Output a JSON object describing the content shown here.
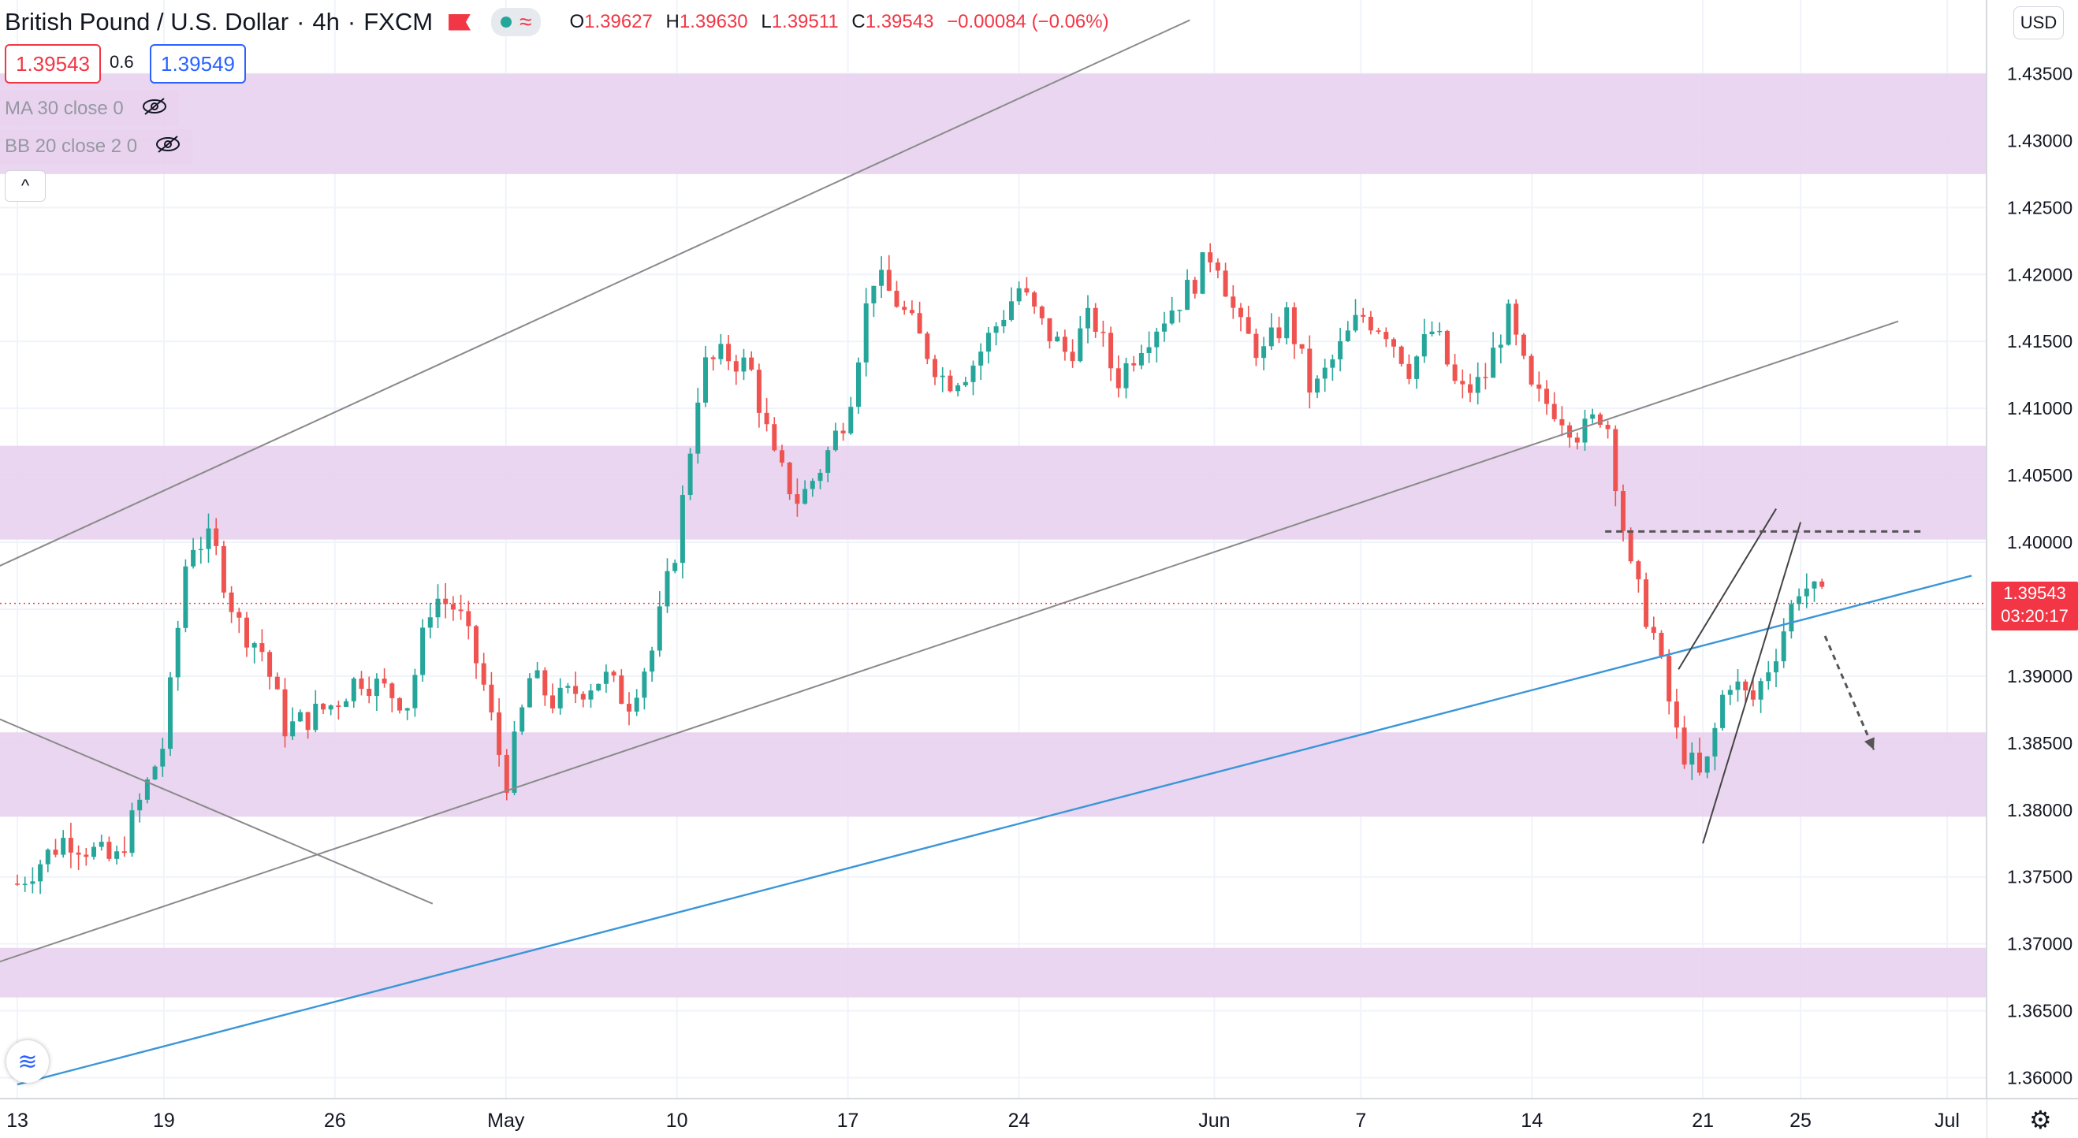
{
  "header": {
    "symbol": "British Pound / U.S. Dollar",
    "interval": "4h",
    "exchange": "FXCM",
    "open_label": "O",
    "open": "1.39627",
    "high_label": "H",
    "high": "1.39630",
    "low_label": "L",
    "low": "1.39511",
    "close_label": "C",
    "close": "1.39543",
    "change": "−0.00084 (−0.06%)",
    "bid": "1.39543",
    "spread": "0.6",
    "ask": "1.39549"
  },
  "indicators": [
    {
      "label": "MA 30 close 0",
      "icon": "eye-off-icon",
      "visible": false
    },
    {
      "label": "BB 20 close 2 0",
      "icon": "eye-off-icon",
      "visible": false
    }
  ],
  "collapse_icon": "^",
  "currency": "USD",
  "axis_top_partial": "1.",
  "last_price": {
    "price": "1.39543",
    "countdown": "03:20:17"
  },
  "logo_icon": "≋",
  "settings_icon": "⚙",
  "colors": {
    "up": "#26a69a",
    "down": "#ef5350",
    "zone": "#e8d2ee",
    "channel": "#8a8a8a",
    "trend": "#3a96d8",
    "last": "#f23645"
  },
  "chart_data": {
    "type": "candlestick",
    "y_ticks": [
      "1.43500",
      "1.43000",
      "1.42500",
      "1.42000",
      "1.41500",
      "1.41000",
      "1.40500",
      "1.40000",
      "1.39500",
      "1.39000",
      "1.38500",
      "1.38000",
      "1.37500",
      "1.37000",
      "1.36500",
      "1.36000"
    ],
    "x_ticks": [
      {
        "label": "13",
        "date": "2021-04-13"
      },
      {
        "label": "19",
        "date": "2021-04-19"
      },
      {
        "label": "26",
        "date": "2021-04-26"
      },
      {
        "label": "May",
        "date": "2021-05-03"
      },
      {
        "label": "10",
        "date": "2021-05-10"
      },
      {
        "label": "17",
        "date": "2021-05-17"
      },
      {
        "label": "24",
        "date": "2021-05-24"
      },
      {
        "label": "Jun",
        "date": "2021-06-01"
      },
      {
        "label": "7",
        "date": "2021-06-07"
      },
      {
        "label": "14",
        "date": "2021-06-14"
      },
      {
        "label": "21",
        "date": "2021-06-21"
      },
      {
        "label": "25",
        "date": "2021-06-25"
      },
      {
        "label": "Jul",
        "date": "2021-07-01"
      }
    ],
    "y_range": [
      1.3555,
      1.4405
    ],
    "closes": [
      {
        "date": "2021-04-13",
        "close": 1.3745
      },
      {
        "date": "2021-04-15",
        "close": 1.378
      },
      {
        "date": "2021-04-17",
        "close": 1.376
      },
      {
        "date": "2021-04-19",
        "close": 1.385
      },
      {
        "date": "2021-04-20",
        "close": 1.4
      },
      {
        "date": "2021-04-21",
        "close": 1.4
      },
      {
        "date": "2021-04-22",
        "close": 1.394
      },
      {
        "date": "2021-04-23",
        "close": 1.392
      },
      {
        "date": "2021-04-24",
        "close": 1.386
      },
      {
        "date": "2021-04-26",
        "close": 1.388
      },
      {
        "date": "2021-04-27",
        "close": 1.39
      },
      {
        "date": "2021-04-29",
        "close": 1.388
      },
      {
        "date": "2021-04-30",
        "close": 1.396
      },
      {
        "date": "2021-05-01",
        "close": 1.395
      },
      {
        "date": "2021-05-02",
        "close": 1.39
      },
      {
        "date": "2021-05-03",
        "close": 1.382
      },
      {
        "date": "2021-05-04",
        "close": 1.39
      },
      {
        "date": "2021-05-05",
        "close": 1.388
      },
      {
        "date": "2021-05-07",
        "close": 1.39
      },
      {
        "date": "2021-05-08",
        "close": 1.388
      },
      {
        "date": "2021-05-09",
        "close": 1.392
      },
      {
        "date": "2021-05-10",
        "close": 1.4
      },
      {
        "date": "2021-05-11",
        "close": 1.413
      },
      {
        "date": "2021-05-12",
        "close": 1.414
      },
      {
        "date": "2021-05-13",
        "close": 1.413
      },
      {
        "date": "2021-05-14",
        "close": 1.406
      },
      {
        "date": "2021-05-15",
        "close": 1.403
      },
      {
        "date": "2021-05-16",
        "close": 1.406
      },
      {
        "date": "2021-05-17",
        "close": 1.41
      },
      {
        "date": "2021-05-18",
        "close": 1.42
      },
      {
        "date": "2021-05-19",
        "close": 1.418
      },
      {
        "date": "2021-05-20",
        "close": 1.415
      },
      {
        "date": "2021-05-21",
        "close": 1.412
      },
      {
        "date": "2021-05-22",
        "close": 1.413
      },
      {
        "date": "2021-05-24",
        "close": 1.419
      },
      {
        "date": "2021-05-25",
        "close": 1.416
      },
      {
        "date": "2021-05-26",
        "close": 1.414
      },
      {
        "date": "2021-05-27",
        "close": 1.417
      },
      {
        "date": "2021-05-28",
        "close": 1.412
      },
      {
        "date": "2021-05-29",
        "close": 1.415
      },
      {
        "date": "2021-05-31",
        "close": 1.419
      },
      {
        "date": "2021-06-01",
        "close": 1.422
      },
      {
        "date": "2021-06-02",
        "close": 1.416
      },
      {
        "date": "2021-06-03",
        "close": 1.414
      },
      {
        "date": "2021-06-04",
        "close": 1.417
      },
      {
        "date": "2021-06-05",
        "close": 1.411
      },
      {
        "date": "2021-06-07",
        "close": 1.417
      },
      {
        "date": "2021-06-08",
        "close": 1.416
      },
      {
        "date": "2021-06-09",
        "close": 1.413
      },
      {
        "date": "2021-06-10",
        "close": 1.416
      },
      {
        "date": "2021-06-11",
        "close": 1.411
      },
      {
        "date": "2021-06-12",
        "close": 1.412
      },
      {
        "date": "2021-06-13",
        "close": 1.417
      },
      {
        "date": "2021-06-14",
        "close": 1.411
      },
      {
        "date": "2021-06-15",
        "close": 1.41
      },
      {
        "date": "2021-06-16",
        "close": 1.408
      },
      {
        "date": "2021-06-17",
        "close": 1.41
      },
      {
        "date": "2021-06-18",
        "close": 1.398
      },
      {
        "date": "2021-06-19",
        "close": 1.393
      },
      {
        "date": "2021-06-20",
        "close": 1.385
      },
      {
        "date": "2021-06-21",
        "close": 1.382
      },
      {
        "date": "2021-06-22",
        "close": 1.39
      },
      {
        "date": "2021-06-23",
        "close": 1.388
      },
      {
        "date": "2021-06-24",
        "close": 1.392
      },
      {
        "date": "2021-06-25",
        "close": 1.397
      },
      {
        "date": "2021-06-26",
        "close": 1.39543
      }
    ],
    "zones": [
      {
        "from": 1.4275,
        "to": 1.435
      },
      {
        "from": 1.4002,
        "to": 1.4072
      },
      {
        "from": 1.3795,
        "to": 1.3858
      },
      {
        "from": 1.366,
        "to": 1.3697
      }
    ],
    "lines": [
      {
        "name": "",
        "kind": "upper-channel",
        "from": {
          "date": "2021-04-12",
          "price": 1.398
        },
        "to": {
          "date": "2021-05-31",
          "price": 1.439
        }
      },
      {
        "name": "",
        "kind": "lower-channel",
        "from": {
          "date": "2021-04-12",
          "price": 1.3685
        },
        "to": {
          "date": "2021-06-29",
          "price": 1.4165
        }
      },
      {
        "name": "",
        "kind": "short-downtrend",
        "from": {
          "date": "2021-04-12",
          "price": 1.387
        },
        "to": {
          "date": "2021-04-30",
          "price": 1.373
        }
      },
      {
        "name": "",
        "kind": "long-trendline",
        "from": {
          "date": "2021-04-13",
          "price": 1.3595
        },
        "to": {
          "date": "2021-07-02",
          "price": 1.3975
        }
      },
      {
        "name": "",
        "kind": "wedge-upper",
        "from": {
          "date": "2021-06-20",
          "price": 1.3905
        },
        "to": {
          "date": "2021-06-24",
          "price": 1.4025
        }
      },
      {
        "name": "",
        "kind": "wedge-lower",
        "from": {
          "date": "2021-06-21",
          "price": 1.3775
        },
        "to": {
          "date": "2021-06-25",
          "price": 1.4015
        }
      }
    ],
    "dashed_resistance": {
      "price": 1.4008,
      "from_date": "2021-06-17",
      "to_date": "2021-06-30"
    },
    "arrow": {
      "from": {
        "date": "2021-06-26",
        "price": 1.393
      },
      "to": {
        "date": "2021-06-28",
        "price": 1.3845
      }
    },
    "last_price_line": 1.39543
  }
}
